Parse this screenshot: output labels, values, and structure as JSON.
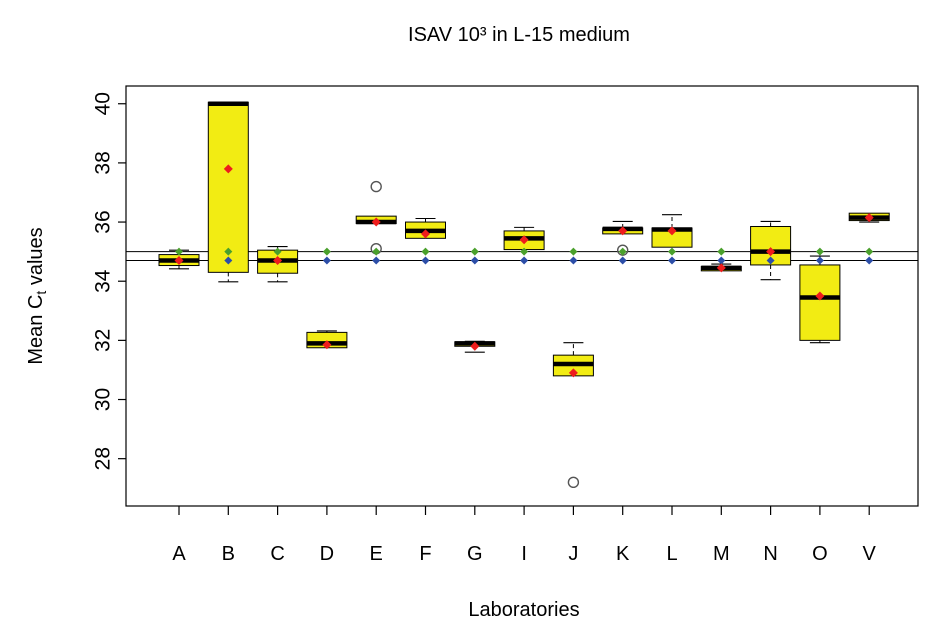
{
  "chart_data": {
    "type": "boxplot",
    "title": "ISAV 10³ in L-15 medium",
    "xlabel": "Laboratories",
    "ylabel_main": "Mean C",
    "ylabel_sub": "t",
    "ylabel_tail": " values",
    "ylim": [
      26.4,
      40.6
    ],
    "yticks": [
      28,
      30,
      32,
      34,
      36,
      38,
      40
    ],
    "reference_lines": [
      35.0,
      34.7
    ],
    "colors": {
      "box_fill": "#f2ec13",
      "median": "#000000",
      "mean_marker": "#ee1c1c",
      "ref_green": "#4aa02c",
      "ref_blue": "#2c4ea8",
      "outlier": "#555555"
    },
    "categories": [
      "A",
      "B",
      "C",
      "D",
      "E",
      "F",
      "G",
      "I",
      "J",
      "K",
      "L",
      "M",
      "N",
      "O",
      "V"
    ],
    "boxes": [
      {
        "label": "A",
        "q1": 34.53,
        "median": 34.7,
        "q3": 34.9,
        "wlo": 34.42,
        "whi": 35.05,
        "mean": 34.7,
        "outliers": []
      },
      {
        "label": "B",
        "q1": 34.3,
        "median": 40.0,
        "q3": 40.05,
        "wlo": 33.98,
        "whi": 40.05,
        "mean": 37.8,
        "outliers": []
      },
      {
        "label": "C",
        "q1": 34.27,
        "median": 34.7,
        "q3": 35.05,
        "wlo": 33.98,
        "whi": 35.17,
        "mean": 34.7,
        "outliers": []
      },
      {
        "label": "D",
        "q1": 31.75,
        "median": 31.9,
        "q3": 32.27,
        "wlo": 31.75,
        "whi": 32.32,
        "mean": 31.85,
        "outliers": []
      },
      {
        "label": "E",
        "q1": 35.95,
        "median": 36.0,
        "q3": 36.2,
        "wlo": 35.95,
        "whi": 36.2,
        "mean": 36.0,
        "outliers": [
          37.2,
          35.1
        ]
      },
      {
        "label": "F",
        "q1": 35.45,
        "median": 35.7,
        "q3": 36.0,
        "wlo": 35.45,
        "whi": 36.12,
        "mean": 35.6,
        "outliers": []
      },
      {
        "label": "G",
        "q1": 31.8,
        "median": 31.9,
        "q3": 31.95,
        "wlo": 31.6,
        "whi": 31.97,
        "mean": 31.8,
        "outliers": []
      },
      {
        "label": "I",
        "q1": 35.07,
        "median": 35.45,
        "q3": 35.7,
        "wlo": 35.07,
        "whi": 35.82,
        "mean": 35.4,
        "outliers": []
      },
      {
        "label": "J",
        "q1": 30.8,
        "median": 31.2,
        "q3": 31.5,
        "wlo": 30.8,
        "whi": 31.92,
        "mean": 30.9,
        "outliers": [
          27.2
        ]
      },
      {
        "label": "K",
        "q1": 35.6,
        "median": 35.77,
        "q3": 35.8,
        "wlo": 35.6,
        "whi": 36.02,
        "mean": 35.7,
        "outliers": [
          35.05
        ]
      },
      {
        "label": "L",
        "q1": 35.15,
        "median": 35.75,
        "q3": 35.8,
        "wlo": 35.15,
        "whi": 36.25,
        "mean": 35.7,
        "outliers": []
      },
      {
        "label": "M",
        "q1": 34.35,
        "median": 34.45,
        "q3": 34.5,
        "wlo": 34.35,
        "whi": 34.58,
        "mean": 34.45,
        "outliers": []
      },
      {
        "label": "N",
        "q1": 34.55,
        "median": 35.0,
        "q3": 35.85,
        "wlo": 34.05,
        "whi": 36.02,
        "mean": 35.0,
        "outliers": []
      },
      {
        "label": "O",
        "q1": 32.0,
        "median": 33.45,
        "q3": 34.55,
        "wlo": 31.92,
        "whi": 34.85,
        "mean": 33.5,
        "outliers": []
      },
      {
        "label": "V",
        "q1": 36.05,
        "median": 36.15,
        "q3": 36.3,
        "wlo": 36.0,
        "whi": 36.3,
        "mean": 36.15,
        "outliers": []
      }
    ]
  }
}
